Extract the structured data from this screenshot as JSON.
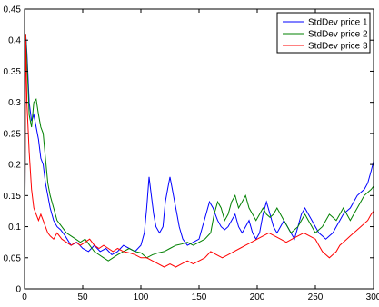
{
  "chart_data": {
    "type": "line",
    "title": "",
    "xlabel": "",
    "ylabel": "",
    "xlim": [
      0,
      300
    ],
    "ylim": [
      0,
      0.45
    ],
    "grid": false,
    "legend_position": "top-right",
    "x_ticks": [
      0,
      50,
      100,
      150,
      200,
      250,
      300
    ],
    "y_ticks": [
      0,
      0.05,
      0.1,
      0.15,
      0.2,
      0.25,
      0.3,
      0.35,
      0.4,
      0.45
    ],
    "x_tick_labels": [
      "0",
      "50",
      "100",
      "150",
      "200",
      "250",
      "300"
    ],
    "y_tick_labels": [
      "0",
      "0.05",
      "0.1",
      "0.15",
      "0.2",
      "0.25",
      "0.3",
      "0.35",
      "0.4",
      "0.45"
    ],
    "series": [
      {
        "name": "StdDev price 1",
        "color": "#0000ff",
        "points": [
          [
            0,
            0.0
          ],
          [
            1,
            0.41
          ],
          [
            2,
            0.38
          ],
          [
            4,
            0.3
          ],
          [
            6,
            0.27
          ],
          [
            8,
            0.28
          ],
          [
            10,
            0.26
          ],
          [
            12,
            0.24
          ],
          [
            14,
            0.21
          ],
          [
            16,
            0.2
          ],
          [
            18,
            0.17
          ],
          [
            20,
            0.15
          ],
          [
            22,
            0.13
          ],
          [
            25,
            0.11
          ],
          [
            28,
            0.1
          ],
          [
            31,
            0.095
          ],
          [
            35,
            0.085
          ],
          [
            40,
            0.07
          ],
          [
            45,
            0.075
          ],
          [
            50,
            0.065
          ],
          [
            55,
            0.06
          ],
          [
            60,
            0.07
          ],
          [
            65,
            0.06
          ],
          [
            70,
            0.065
          ],
          [
            75,
            0.055
          ],
          [
            80,
            0.06
          ],
          [
            85,
            0.07
          ],
          [
            90,
            0.065
          ],
          [
            95,
            0.06
          ],
          [
            100,
            0.07
          ],
          [
            103,
            0.09
          ],
          [
            105,
            0.13
          ],
          [
            107,
            0.18
          ],
          [
            109,
            0.15
          ],
          [
            111,
            0.12
          ],
          [
            113,
            0.1
          ],
          [
            116,
            0.09
          ],
          [
            119,
            0.1
          ],
          [
            121,
            0.14
          ],
          [
            123,
            0.16
          ],
          [
            125,
            0.18
          ],
          [
            127,
            0.16
          ],
          [
            129,
            0.14
          ],
          [
            131,
            0.12
          ],
          [
            133,
            0.1
          ],
          [
            136,
            0.08
          ],
          [
            140,
            0.07
          ],
          [
            145,
            0.075
          ],
          [
            150,
            0.08
          ],
          [
            153,
            0.1
          ],
          [
            156,
            0.12
          ],
          [
            159,
            0.14
          ],
          [
            162,
            0.13
          ],
          [
            164,
            0.12
          ],
          [
            166,
            0.11
          ],
          [
            169,
            0.1
          ],
          [
            172,
            0.095
          ],
          [
            175,
            0.1
          ],
          [
            178,
            0.11
          ],
          [
            181,
            0.12
          ],
          [
            184,
            0.1
          ],
          [
            187,
            0.09
          ],
          [
            190,
            0.1
          ],
          [
            193,
            0.11
          ],
          [
            196,
            0.09
          ],
          [
            199,
            0.08
          ],
          [
            202,
            0.09
          ],
          [
            205,
            0.12
          ],
          [
            208,
            0.14
          ],
          [
            211,
            0.12
          ],
          [
            214,
            0.1
          ],
          [
            217,
            0.09
          ],
          [
            220,
            0.1
          ],
          [
            223,
            0.11
          ],
          [
            226,
            0.1
          ],
          [
            229,
            0.09
          ],
          [
            232,
            0.08
          ],
          [
            235,
            0.1
          ],
          [
            238,
            0.12
          ],
          [
            241,
            0.13
          ],
          [
            244,
            0.12
          ],
          [
            247,
            0.11
          ],
          [
            250,
            0.1
          ],
          [
            253,
            0.09
          ],
          [
            256,
            0.085
          ],
          [
            259,
            0.08
          ],
          [
            262,
            0.085
          ],
          [
            265,
            0.09
          ],
          [
            268,
            0.1
          ],
          [
            271,
            0.11
          ],
          [
            274,
            0.12
          ],
          [
            277,
            0.125
          ],
          [
            280,
            0.13
          ],
          [
            283,
            0.14
          ],
          [
            286,
            0.15
          ],
          [
            289,
            0.155
          ],
          [
            292,
            0.16
          ],
          [
            295,
            0.17
          ],
          [
            298,
            0.19
          ],
          [
            300,
            0.205
          ]
        ]
      },
      {
        "name": "StdDev price 2",
        "color": "#008000",
        "points": [
          [
            0,
            0.0
          ],
          [
            1,
            0.41
          ],
          [
            2,
            0.37
          ],
          [
            4,
            0.28
          ],
          [
            6,
            0.26
          ],
          [
            8,
            0.3
          ],
          [
            10,
            0.305
          ],
          [
            12,
            0.28
          ],
          [
            14,
            0.26
          ],
          [
            16,
            0.25
          ],
          [
            18,
            0.21
          ],
          [
            20,
            0.17
          ],
          [
            22,
            0.15
          ],
          [
            25,
            0.13
          ],
          [
            28,
            0.11
          ],
          [
            32,
            0.1
          ],
          [
            36,
            0.09
          ],
          [
            40,
            0.085
          ],
          [
            44,
            0.08
          ],
          [
            48,
            0.075
          ],
          [
            52,
            0.08
          ],
          [
            56,
            0.07
          ],
          [
            60,
            0.06
          ],
          [
            64,
            0.055
          ],
          [
            68,
            0.05
          ],
          [
            72,
            0.045
          ],
          [
            76,
            0.05
          ],
          [
            80,
            0.055
          ],
          [
            85,
            0.06
          ],
          [
            90,
            0.065
          ],
          [
            95,
            0.06
          ],
          [
            100,
            0.058
          ],
          [
            105,
            0.05
          ],
          [
            110,
            0.055
          ],
          [
            115,
            0.058
          ],
          [
            120,
            0.06
          ],
          [
            125,
            0.065
          ],
          [
            130,
            0.07
          ],
          [
            135,
            0.072
          ],
          [
            140,
            0.075
          ],
          [
            145,
            0.07
          ],
          [
            150,
            0.075
          ],
          [
            155,
            0.08
          ],
          [
            160,
            0.09
          ],
          [
            163,
            0.12
          ],
          [
            166,
            0.14
          ],
          [
            169,
            0.13
          ],
          [
            172,
            0.11
          ],
          [
            175,
            0.12
          ],
          [
            178,
            0.14
          ],
          [
            181,
            0.15
          ],
          [
            184,
            0.13
          ],
          [
            187,
            0.14
          ],
          [
            190,
            0.15
          ],
          [
            193,
            0.13
          ],
          [
            196,
            0.12
          ],
          [
            199,
            0.11
          ],
          [
            202,
            0.12
          ],
          [
            205,
            0.13
          ],
          [
            208,
            0.12
          ],
          [
            211,
            0.115
          ],
          [
            214,
            0.12
          ],
          [
            217,
            0.13
          ],
          [
            220,
            0.12
          ],
          [
            223,
            0.11
          ],
          [
            226,
            0.1
          ],
          [
            229,
            0.09
          ],
          [
            232,
            0.095
          ],
          [
            235,
            0.1
          ],
          [
            238,
            0.11
          ],
          [
            241,
            0.12
          ],
          [
            244,
            0.11
          ],
          [
            247,
            0.1
          ],
          [
            250,
            0.09
          ],
          [
            253,
            0.095
          ],
          [
            256,
            0.1
          ],
          [
            259,
            0.11
          ],
          [
            262,
            0.12
          ],
          [
            265,
            0.115
          ],
          [
            268,
            0.11
          ],
          [
            271,
            0.12
          ],
          [
            274,
            0.13
          ],
          [
            277,
            0.12
          ],
          [
            280,
            0.11
          ],
          [
            283,
            0.12
          ],
          [
            286,
            0.13
          ],
          [
            289,
            0.14
          ],
          [
            292,
            0.15
          ],
          [
            295,
            0.155
          ],
          [
            298,
            0.16
          ],
          [
            300,
            0.165
          ]
        ]
      },
      {
        "name": "StdDev price 3",
        "color": "#ff0000",
        "points": [
          [
            0,
            0.0
          ],
          [
            1,
            0.41
          ],
          [
            2,
            0.3
          ],
          [
            4,
            0.22
          ],
          [
            6,
            0.16
          ],
          [
            8,
            0.13
          ],
          [
            10,
            0.12
          ],
          [
            12,
            0.11
          ],
          [
            14,
            0.12
          ],
          [
            16,
            0.11
          ],
          [
            18,
            0.1
          ],
          [
            20,
            0.09
          ],
          [
            22,
            0.085
          ],
          [
            25,
            0.08
          ],
          [
            28,
            0.09
          ],
          [
            32,
            0.08
          ],
          [
            36,
            0.075
          ],
          [
            40,
            0.07
          ],
          [
            44,
            0.075
          ],
          [
            48,
            0.07
          ],
          [
            52,
            0.075
          ],
          [
            56,
            0.08
          ],
          [
            60,
            0.07
          ],
          [
            64,
            0.065
          ],
          [
            68,
            0.07
          ],
          [
            72,
            0.065
          ],
          [
            76,
            0.06
          ],
          [
            80,
            0.065
          ],
          [
            85,
            0.06
          ],
          [
            90,
            0.058
          ],
          [
            95,
            0.055
          ],
          [
            100,
            0.05
          ],
          [
            105,
            0.05
          ],
          [
            110,
            0.045
          ],
          [
            115,
            0.04
          ],
          [
            120,
            0.035
          ],
          [
            125,
            0.04
          ],
          [
            130,
            0.035
          ],
          [
            135,
            0.04
          ],
          [
            140,
            0.045
          ],
          [
            145,
            0.04
          ],
          [
            150,
            0.045
          ],
          [
            155,
            0.05
          ],
          [
            160,
            0.06
          ],
          [
            165,
            0.055
          ],
          [
            170,
            0.05
          ],
          [
            175,
            0.055
          ],
          [
            180,
            0.06
          ],
          [
            185,
            0.065
          ],
          [
            190,
            0.07
          ],
          [
            195,
            0.075
          ],
          [
            200,
            0.08
          ],
          [
            205,
            0.085
          ],
          [
            210,
            0.09
          ],
          [
            215,
            0.085
          ],
          [
            220,
            0.08
          ],
          [
            225,
            0.075
          ],
          [
            230,
            0.08
          ],
          [
            235,
            0.085
          ],
          [
            240,
            0.09
          ],
          [
            245,
            0.085
          ],
          [
            250,
            0.08
          ],
          [
            253,
            0.07
          ],
          [
            256,
            0.06
          ],
          [
            259,
            0.055
          ],
          [
            262,
            0.05
          ],
          [
            265,
            0.055
          ],
          [
            268,
            0.06
          ],
          [
            271,
            0.07
          ],
          [
            274,
            0.075
          ],
          [
            277,
            0.08
          ],
          [
            280,
            0.085
          ],
          [
            283,
            0.09
          ],
          [
            286,
            0.095
          ],
          [
            289,
            0.1
          ],
          [
            292,
            0.105
          ],
          [
            295,
            0.11
          ],
          [
            298,
            0.12
          ],
          [
            300,
            0.125
          ]
        ]
      }
    ]
  }
}
